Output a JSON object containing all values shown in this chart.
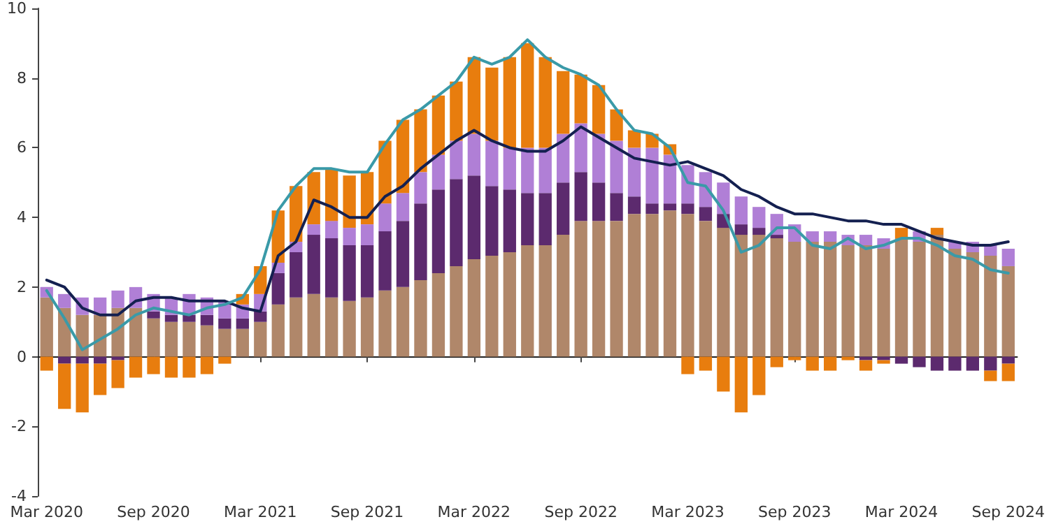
{
  "chart_data": {
    "type": "bar",
    "stacked": true,
    "categories": [
      "Mar 2020",
      null,
      null,
      null,
      null,
      null,
      "Sep 2020",
      null,
      null,
      null,
      null,
      null,
      "Mar 2021",
      null,
      null,
      null,
      null,
      null,
      "Sep 2021",
      null,
      null,
      null,
      null,
      null,
      "Mar 2022",
      null,
      null,
      null,
      null,
      null,
      "Sep 2022",
      null,
      null,
      null,
      null,
      null,
      "Mar 2023",
      null,
      null,
      null,
      null,
      null,
      "Sep 2023",
      null,
      null,
      null,
      null,
      null,
      "Mar 2024",
      null,
      null,
      null,
      null,
      null,
      "Sep 2024"
    ],
    "ylim": [
      -4,
      10
    ],
    "yticks": [
      -4,
      -2,
      0,
      2,
      4,
      6,
      8,
      10
    ],
    "marker": "none",
    "line_style": "solid",
    "series": [
      {
        "color": "#b0876a",
        "values": [
          1.7,
          1.4,
          1.2,
          1.2,
          1.4,
          1.4,
          1.1,
          1.0,
          1.0,
          0.9,
          0.8,
          0.8,
          1.0,
          1.5,
          1.7,
          1.8,
          1.7,
          1.6,
          1.7,
          1.9,
          2.0,
          2.2,
          2.4,
          2.6,
          2.8,
          2.9,
          3.0,
          3.2,
          3.2,
          3.5,
          3.9,
          3.9,
          3.9,
          4.1,
          4.1,
          4.2,
          4.1,
          3.9,
          3.7,
          3.5,
          3.5,
          3.4,
          3.3,
          3.3,
          3.3,
          3.2,
          3.2,
          3.1,
          3.4,
          3.3,
          3.5,
          3.1,
          3.0,
          2.9,
          2.6
        ]
      },
      {
        "color": "#5c2a6e",
        "values": [
          0,
          -0.2,
          -0.2,
          -0.2,
          -0.1,
          0,
          0.2,
          0.2,
          0.2,
          0.3,
          0.3,
          0.3,
          0.3,
          0.9,
          1.3,
          1.7,
          1.7,
          1.6,
          1.5,
          1.7,
          1.9,
          2.2,
          2.4,
          2.5,
          2.4,
          2.0,
          1.8,
          1.5,
          1.5,
          1.5,
          1.4,
          1.1,
          0.8,
          0.5,
          0.3,
          0.2,
          0.3,
          0.4,
          0.4,
          0.3,
          0.2,
          0.1,
          0,
          0,
          0,
          0,
          -0.1,
          -0.1,
          -0.2,
          -0.3,
          -0.4,
          -0.4,
          -0.4,
          -0.4,
          -0.2
        ]
      },
      {
        "color": "#b07fd6",
        "values": [
          0.3,
          0.4,
          0.5,
          0.5,
          0.5,
          0.6,
          0.5,
          0.5,
          0.6,
          0.5,
          0.5,
          0.4,
          0.5,
          0.3,
          0.3,
          0.3,
          0.5,
          0.5,
          0.6,
          0.8,
          0.8,
          0.9,
          1.0,
          1.1,
          1.2,
          1.3,
          1.2,
          1.3,
          1.3,
          1.4,
          1.4,
          1.4,
          1.5,
          1.4,
          1.6,
          1.4,
          1.1,
          1.0,
          0.9,
          0.8,
          0.6,
          0.6,
          0.5,
          0.3,
          0.3,
          0.3,
          0.3,
          0.3,
          0,
          0.3,
          0,
          0.2,
          0.3,
          0.3,
          0.5
        ]
      },
      {
        "color": "#e87d0e",
        "values": [
          -0.4,
          -1.3,
          -1.4,
          -0.9,
          -0.8,
          -0.6,
          -0.5,
          -0.6,
          -0.6,
          -0.5,
          -0.2,
          0.3,
          0.8,
          1.5,
          1.6,
          1.5,
          1.5,
          1.5,
          1.5,
          1.8,
          2.1,
          1.8,
          1.7,
          1.7,
          2.2,
          2.1,
          2.6,
          3.0,
          2.6,
          1.8,
          1.4,
          1.4,
          0.9,
          0.5,
          0.4,
          0.3,
          -0.5,
          -0.4,
          -1.0,
          -1.6,
          -1.1,
          -0.3,
          -0.1,
          -0.4,
          -0.4,
          -0.1,
          -0.3,
          -0.1,
          0.3,
          0,
          0.2,
          0,
          0,
          -0.3,
          -0.5
        ]
      },
      {
        "type": "line",
        "color": "#142050",
        "values": [
          2.2,
          2.0,
          1.4,
          1.2,
          1.2,
          1.6,
          1.7,
          1.7,
          1.6,
          1.6,
          1.6,
          1.4,
          1.3,
          2.9,
          3.3,
          4.5,
          4.3,
          4.0,
          4.0,
          4.6,
          4.9,
          5.4,
          5.8,
          6.2,
          6.5,
          6.2,
          6.0,
          5.9,
          5.9,
          6.2,
          6.6,
          6.3,
          6.0,
          5.7,
          5.6,
          5.5,
          5.6,
          5.4,
          5.2,
          4.8,
          4.6,
          4.3,
          4.1,
          4.1,
          4.0,
          3.9,
          3.9,
          3.8,
          3.8,
          3.6,
          3.4,
          3.3,
          3.2,
          3.2,
          3.3
        ]
      },
      {
        "type": "line",
        "color": "#3a9aa8",
        "values": [
          1.9,
          1.1,
          0.2,
          0.5,
          0.8,
          1.2,
          1.4,
          1.3,
          1.2,
          1.4,
          1.5,
          1.7,
          2.5,
          4.2,
          4.9,
          5.4,
          5.4,
          5.3,
          5.3,
          6.1,
          6.8,
          7.1,
          7.5,
          7.9,
          8.6,
          8.4,
          8.6,
          9.1,
          8.6,
          8.3,
          8.1,
          7.8,
          7.1,
          6.5,
          6.4,
          6.0,
          5.0,
          4.9,
          4.2,
          3.0,
          3.2,
          3.7,
          3.7,
          3.2,
          3.1,
          3.4,
          3.1,
          3.2,
          3.4,
          3.4,
          3.2,
          2.9,
          2.8,
          2.5,
          2.4
        ]
      }
    ]
  }
}
